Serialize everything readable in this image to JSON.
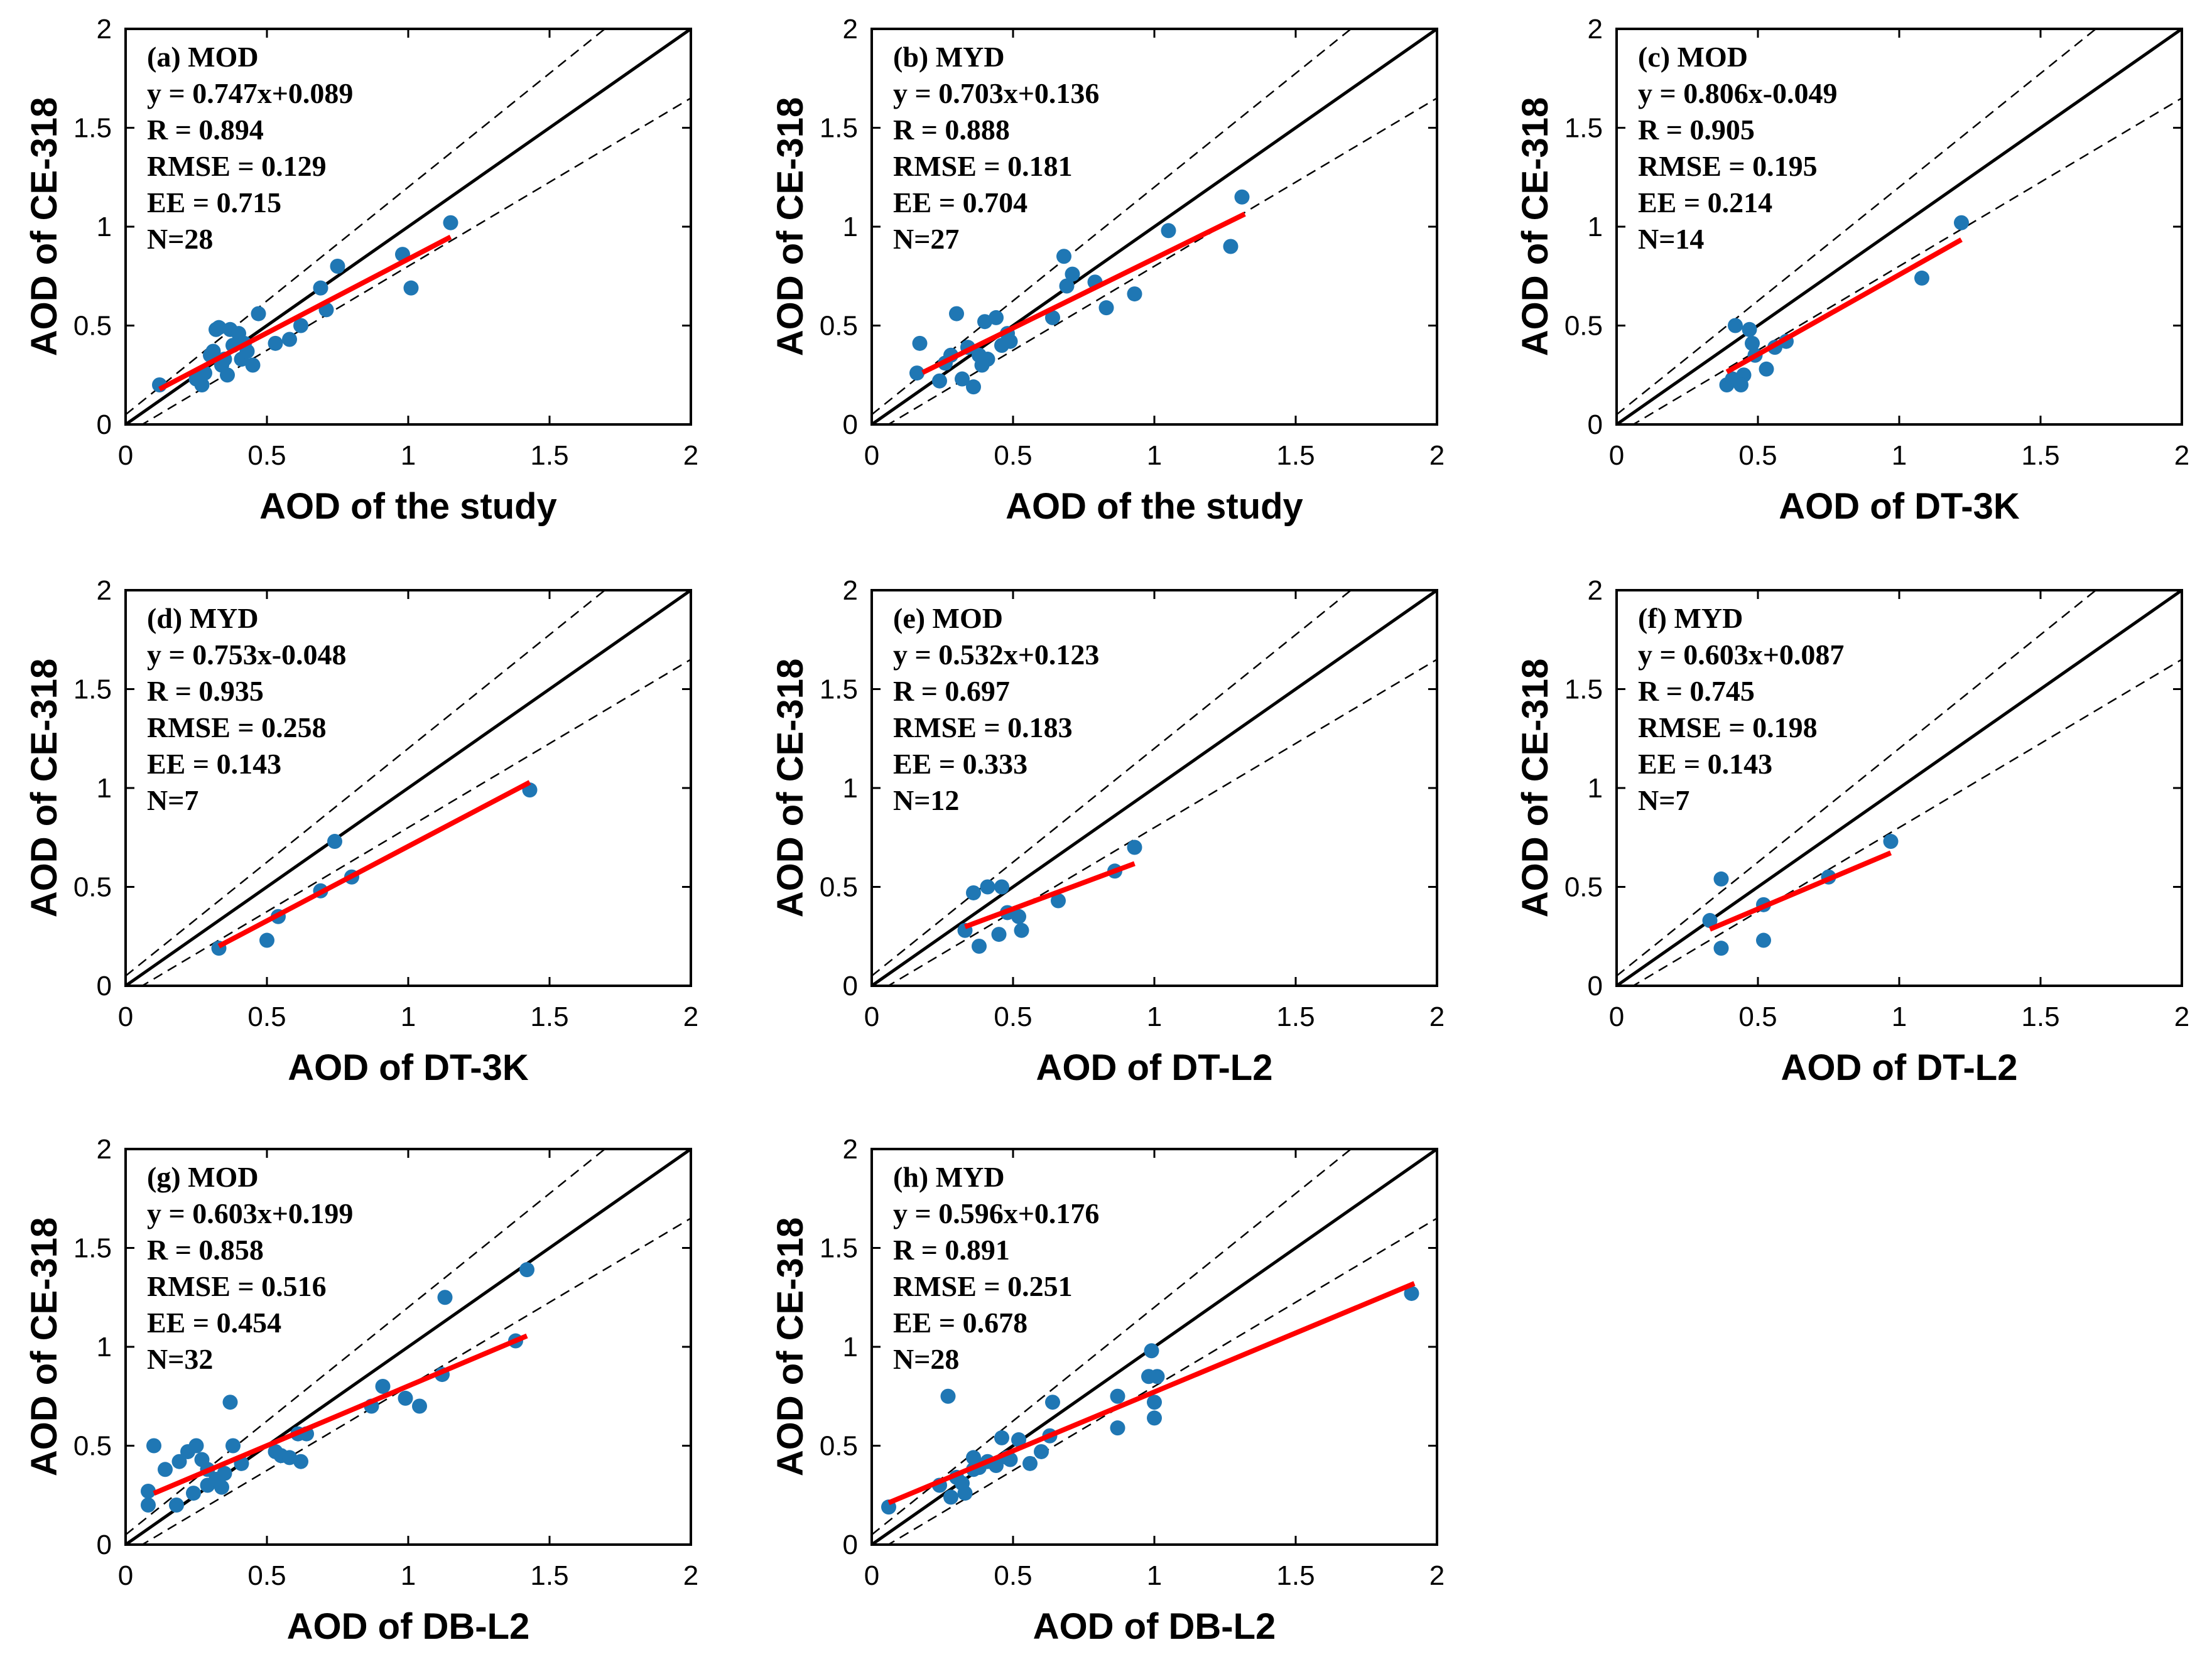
{
  "colors": {
    "points": "#1f77b4",
    "fit_line": "#ff0000",
    "one_to_one": "#000000",
    "ee_lines": "#000000",
    "frame": "#000000"
  },
  "chart_data": [
    {
      "type": "scatter",
      "panel": "(a) MOD",
      "xlabel": "AOD of the study",
      "ylabel": "AOD of CE-318",
      "xlim": [
        0,
        2
      ],
      "ylim": [
        0,
        2
      ],
      "xticks": [
        "0",
        "0.5",
        "1",
        "1.5",
        "2"
      ],
      "yticks": [
        "0",
        "0.5",
        "1",
        "1.5",
        "2"
      ],
      "fit": {
        "slope": 0.747,
        "intercept": 0.089,
        "x_range": [
          0.12,
          1.15
        ]
      },
      "stats": [
        "y = 0.747x+0.089",
        "R = 0.894",
        "RMSE = 0.129",
        "EE = 0.715",
        "N=28"
      ],
      "points": [
        [
          0.12,
          0.2
        ],
        [
          0.27,
          0.2
        ],
        [
          0.25,
          0.23
        ],
        [
          0.28,
          0.26
        ],
        [
          0.3,
          0.35
        ],
        [
          0.31,
          0.37
        ],
        [
          0.32,
          0.48
        ],
        [
          0.33,
          0.49
        ],
        [
          0.34,
          0.3
        ],
        [
          0.35,
          0.33
        ],
        [
          0.36,
          0.25
        ],
        [
          0.37,
          0.48
        ],
        [
          0.38,
          0.4
        ],
        [
          0.4,
          0.46
        ],
        [
          0.41,
          0.33
        ],
        [
          0.42,
          0.41
        ],
        [
          0.43,
          0.37
        ],
        [
          0.45,
          0.3
        ],
        [
          0.47,
          0.56
        ],
        [
          0.53,
          0.41
        ],
        [
          0.58,
          0.43
        ],
        [
          0.62,
          0.5
        ],
        [
          0.69,
          0.69
        ],
        [
          0.71,
          0.58
        ],
        [
          0.75,
          0.8
        ],
        [
          0.98,
          0.86
        ],
        [
          1.01,
          0.69
        ],
        [
          1.15,
          1.02
        ]
      ]
    },
    {
      "type": "scatter",
      "panel": "(b) MYD",
      "xlabel": "AOD of the study",
      "ylabel": "AOD of CE-318",
      "xlim": [
        0,
        2
      ],
      "ylim": [
        0,
        2
      ],
      "xticks": [
        "0",
        "0.5",
        "1",
        "1.5",
        "2"
      ],
      "yticks": [
        "0",
        "0.5",
        "1",
        "1.5",
        "2"
      ],
      "fit": {
        "slope": 0.703,
        "intercept": 0.136,
        "x_range": [
          0.18,
          1.32
        ]
      },
      "stats": [
        "y = 0.703x+0.136",
        "R = 0.888",
        "RMSE = 0.181",
        "EE = 0.704",
        "N=27"
      ],
      "points": [
        [
          0.16,
          0.26
        ],
        [
          0.17,
          0.41
        ],
        [
          0.24,
          0.22
        ],
        [
          0.26,
          0.31
        ],
        [
          0.28,
          0.35
        ],
        [
          0.3,
          0.56
        ],
        [
          0.32,
          0.23
        ],
        [
          0.34,
          0.39
        ],
        [
          0.36,
          0.19
        ],
        [
          0.38,
          0.35
        ],
        [
          0.39,
          0.3
        ],
        [
          0.4,
          0.52
        ],
        [
          0.44,
          0.54
        ],
        [
          0.48,
          0.46
        ],
        [
          0.49,
          0.42
        ],
        [
          0.64,
          0.54
        ],
        [
          0.68,
          0.85
        ],
        [
          0.69,
          0.7
        ],
        [
          0.71,
          0.76
        ],
        [
          0.79,
          0.72
        ],
        [
          0.83,
          0.59
        ],
        [
          0.93,
          0.66
        ],
        [
          1.05,
          0.98
        ],
        [
          1.27,
          0.9
        ],
        [
          1.31,
          1.15
        ],
        [
          0.41,
          0.33
        ],
        [
          0.46,
          0.4
        ]
      ]
    },
    {
      "type": "scatter",
      "panel": "(c) MOD",
      "xlabel": "AOD of DT-3K",
      "ylabel": "AOD of CE-318",
      "xlim": [
        0,
        2
      ],
      "ylim": [
        0,
        2
      ],
      "xticks": [
        "0",
        "0.5",
        "1",
        "1.5",
        "2"
      ],
      "yticks": [
        "0",
        "0.5",
        "1",
        "1.5",
        "2"
      ],
      "fit": {
        "slope": 0.806,
        "intercept": -0.049,
        "x_range": [
          0.39,
          1.22
        ]
      },
      "stats": [
        "y = 0.806x-0.049",
        "R = 0.905",
        "RMSE = 0.195",
        "EE = 0.214",
        "N=14"
      ],
      "points": [
        [
          0.39,
          0.2
        ],
        [
          0.41,
          0.23
        ],
        [
          0.42,
          0.5
        ],
        [
          0.43,
          0.22
        ],
        [
          0.45,
          0.25
        ],
        [
          0.47,
          0.48
        ],
        [
          0.48,
          0.41
        ],
        [
          0.49,
          0.35
        ],
        [
          0.53,
          0.28
        ],
        [
          0.56,
          0.39
        ],
        [
          0.6,
          0.42
        ],
        [
          1.08,
          0.74
        ],
        [
          1.22,
          1.02
        ],
        [
          0.44,
          0.2
        ]
      ]
    },
    {
      "type": "scatter",
      "panel": "(d) MYD",
      "xlabel": "AOD of DT-3K",
      "ylabel": "AOD of CE-318",
      "xlim": [
        0,
        2
      ],
      "ylim": [
        0,
        2
      ],
      "xticks": [
        "0",
        "0.5",
        "1",
        "1.5",
        "2"
      ],
      "yticks": [
        "0",
        "0.5",
        "1",
        "1.5",
        "2"
      ],
      "fit": {
        "slope": 0.753,
        "intercept": -0.048,
        "x_range": [
          0.33,
          1.43
        ]
      },
      "stats": [
        "y = 0.753x-0.048",
        "R = 0.935",
        "RMSE = 0.258",
        "EE = 0.143",
        "N=7"
      ],
      "points": [
        [
          0.33,
          0.19
        ],
        [
          0.5,
          0.23
        ],
        [
          0.54,
          0.35
        ],
        [
          0.69,
          0.48
        ],
        [
          0.74,
          0.73
        ],
        [
          0.8,
          0.55
        ],
        [
          1.43,
          0.99
        ]
      ]
    },
    {
      "type": "scatter",
      "panel": "(e) MOD",
      "xlabel": "AOD of DT-L2",
      "ylabel": "AOD of CE-318",
      "xlim": [
        0,
        2
      ],
      "ylim": [
        0,
        2
      ],
      "xticks": [
        "0",
        "0.5",
        "1",
        "1.5",
        "2"
      ],
      "yticks": [
        "0",
        "0.5",
        "1",
        "1.5",
        "2"
      ],
      "fit": {
        "slope": 0.532,
        "intercept": 0.123,
        "x_range": [
          0.33,
          0.93
        ]
      },
      "stats": [
        "y = 0.532x+0.123",
        "R = 0.697",
        "RMSE = 0.183",
        "EE = 0.333",
        "N=12"
      ],
      "points": [
        [
          0.33,
          0.28
        ],
        [
          0.36,
          0.47
        ],
        [
          0.38,
          0.2
        ],
        [
          0.41,
          0.5
        ],
        [
          0.45,
          0.26
        ],
        [
          0.46,
          0.5
        ],
        [
          0.48,
          0.37
        ],
        [
          0.52,
          0.35
        ],
        [
          0.53,
          0.28
        ],
        [
          0.66,
          0.43
        ],
        [
          0.86,
          0.58
        ],
        [
          0.93,
          0.7
        ]
      ]
    },
    {
      "type": "scatter",
      "panel": "(f) MYD",
      "xlabel": "AOD of DT-L2",
      "ylabel": "AOD of CE-318",
      "xlim": [
        0,
        2
      ],
      "ylim": [
        0,
        2
      ],
      "xticks": [
        "0",
        "0.5",
        "1",
        "1.5",
        "2"
      ],
      "yticks": [
        "0",
        "0.5",
        "1",
        "1.5",
        "2"
      ],
      "fit": {
        "slope": 0.603,
        "intercept": 0.087,
        "x_range": [
          0.33,
          0.97
        ]
      },
      "stats": [
        "y = 0.603x+0.087",
        "R = 0.745",
        "RMSE = 0.198",
        "EE = 0.143",
        "N=7"
      ],
      "points": [
        [
          0.33,
          0.33
        ],
        [
          0.37,
          0.19
        ],
        [
          0.37,
          0.54
        ],
        [
          0.52,
          0.23
        ],
        [
          0.52,
          0.41
        ],
        [
          0.75,
          0.55
        ],
        [
          0.97,
          0.73
        ]
      ]
    },
    {
      "type": "scatter",
      "panel": "(g) MOD",
      "xlabel": "AOD of DB-L2",
      "ylabel": "AOD of CE-318",
      "xlim": [
        0,
        2
      ],
      "ylim": [
        0,
        2
      ],
      "xticks": [
        "0",
        "0.5",
        "1",
        "1.5",
        "2"
      ],
      "yticks": [
        "0",
        "0.5",
        "1",
        "1.5",
        "2"
      ],
      "fit": {
        "slope": 0.603,
        "intercept": 0.199,
        "x_range": [
          0.1,
          1.42
        ]
      },
      "stats": [
        "y = 0.603x+0.199",
        "R = 0.858",
        "RMSE = 0.516",
        "EE = 0.454",
        "N=32"
      ],
      "points": [
        [
          0.08,
          0.2
        ],
        [
          0.08,
          0.27
        ],
        [
          0.1,
          0.5
        ],
        [
          0.14,
          0.38
        ],
        [
          0.18,
          0.2
        ],
        [
          0.19,
          0.42
        ],
        [
          0.22,
          0.47
        ],
        [
          0.24,
          0.26
        ],
        [
          0.25,
          0.5
        ],
        [
          0.27,
          0.43
        ],
        [
          0.29,
          0.3
        ],
        [
          0.29,
          0.38
        ],
        [
          0.32,
          0.33
        ],
        [
          0.34,
          0.29
        ],
        [
          0.35,
          0.36
        ],
        [
          0.37,
          0.72
        ],
        [
          0.38,
          0.5
        ],
        [
          0.41,
          0.41
        ],
        [
          0.53,
          0.47
        ],
        [
          0.55,
          0.45
        ],
        [
          0.58,
          0.44
        ],
        [
          0.61,
          0.56
        ],
        [
          0.62,
          0.42
        ],
        [
          0.64,
          0.56
        ],
        [
          0.87,
          0.7
        ],
        [
          0.91,
          0.8
        ],
        [
          0.99,
          0.74
        ],
        [
          1.04,
          0.7
        ],
        [
          1.12,
          0.86
        ],
        [
          1.13,
          1.25
        ],
        [
          1.38,
          1.03
        ],
        [
          1.42,
          1.39
        ]
      ]
    },
    {
      "type": "scatter",
      "panel": "(h) MYD",
      "xlabel": "AOD of DB-L2",
      "ylabel": "AOD of CE-318",
      "xlim": [
        0,
        2
      ],
      "ylim": [
        0,
        2
      ],
      "xticks": [
        "0",
        "0.5",
        "1",
        "1.5",
        "2"
      ],
      "yticks": [
        "0",
        "0.5",
        "1",
        "1.5",
        "2"
      ],
      "fit": {
        "slope": 0.596,
        "intercept": 0.176,
        "x_range": [
          0.06,
          1.92
        ]
      },
      "stats": [
        "y = 0.596x+0.176",
        "R = 0.891",
        "RMSE = 0.251",
        "EE = 0.678",
        "N=28"
      ],
      "points": [
        [
          0.06,
          0.19
        ],
        [
          0.24,
          0.3
        ],
        [
          0.27,
          0.75
        ],
        [
          0.28,
          0.24
        ],
        [
          0.3,
          0.34
        ],
        [
          0.32,
          0.31
        ],
        [
          0.33,
          0.26
        ],
        [
          0.36,
          0.44
        ],
        [
          0.38,
          0.39
        ],
        [
          0.41,
          0.42
        ],
        [
          0.46,
          0.54
        ],
        [
          0.48,
          0.44
        ],
        [
          0.52,
          0.53
        ],
        [
          0.56,
          0.41
        ],
        [
          0.6,
          0.47
        ],
        [
          0.63,
          0.55
        ],
        [
          0.64,
          0.72
        ],
        [
          0.87,
          0.59
        ],
        [
          0.87,
          0.75
        ],
        [
          0.98,
          0.85
        ],
        [
          0.99,
          0.98
        ],
        [
          1.0,
          0.72
        ],
        [
          1.0,
          0.64
        ],
        [
          1.01,
          0.85
        ],
        [
          1.91,
          1.27
        ],
        [
          0.36,
          0.38
        ],
        [
          0.49,
          0.43
        ],
        [
          0.44,
          0.4
        ]
      ]
    }
  ]
}
